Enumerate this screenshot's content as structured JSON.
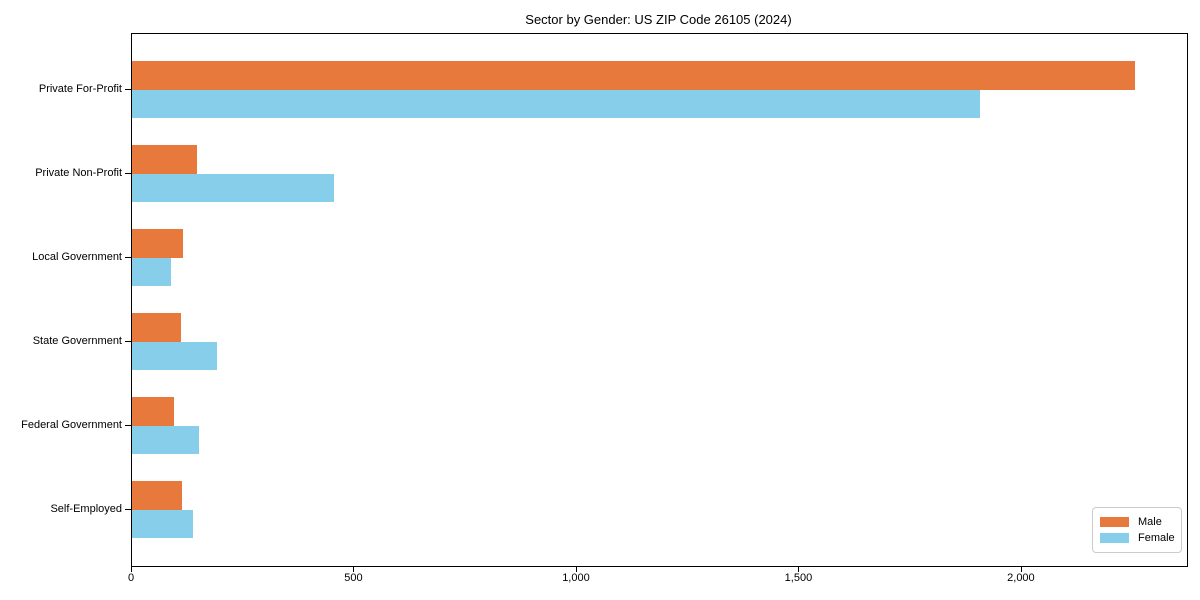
{
  "title": "Sector by Gender: US ZIP Code 26105 (2024)",
  "colors": {
    "male": "#e8793d",
    "female": "#87ceeb",
    "axis": "#000000",
    "legend_border": "#cccccc",
    "background": "#ffffff"
  },
  "legend": {
    "position": "lower right",
    "items": [
      {
        "label": "Male"
      },
      {
        "label": "Female"
      }
    ]
  },
  "chart_data": {
    "type": "bar",
    "orientation": "horizontal",
    "title": "Sector by Gender: US ZIP Code 26105 (2024)",
    "categories": [
      "Private For-Profit",
      "Private Non-Profit",
      "Local Government",
      "State Government",
      "Federal Government",
      "Self-Employed"
    ],
    "series": [
      {
        "name": "Male",
        "color": "#e8793d",
        "values": [
          2255,
          145,
          115,
          110,
          95,
          113
        ]
      },
      {
        "name": "Female",
        "color": "#87ceeb",
        "values": [
          1905,
          455,
          88,
          190,
          150,
          138
        ]
      }
    ],
    "xlabel": "",
    "ylabel": "",
    "xlim": [
      0,
      2371
    ],
    "xticks": [
      0,
      500,
      1000,
      1500,
      2000
    ],
    "xtick_labels": [
      "0",
      "500",
      "1,000",
      "1,500",
      "2,000"
    ],
    "grid": false,
    "legend_position": "lower right"
  }
}
